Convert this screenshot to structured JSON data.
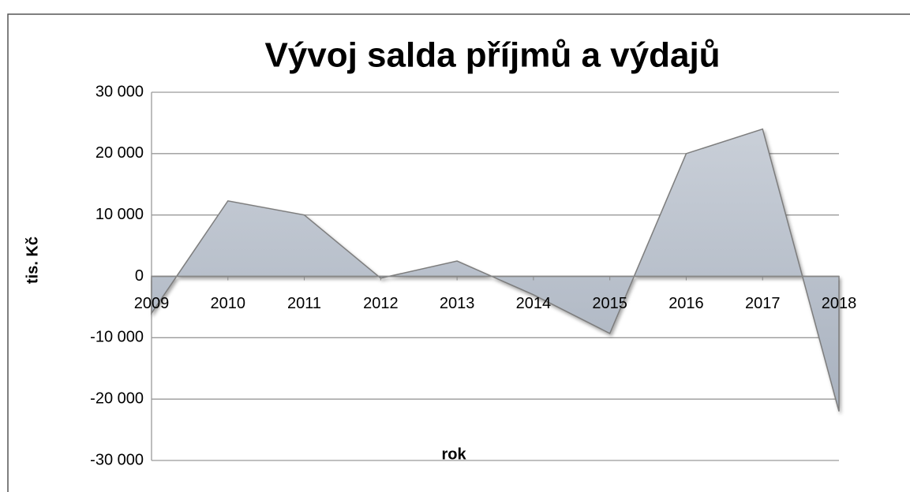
{
  "chart_data": {
    "type": "area",
    "title": "Vývoj salda příjmů a výdajů",
    "x_label": "rok",
    "y_label": "tis. Kč",
    "categories": [
      "2009",
      "2010",
      "2011",
      "2012",
      "2013",
      "2014",
      "2015",
      "2016",
      "2017",
      "2018"
    ],
    "values": [
      -6000,
      12300,
      10000,
      -300,
      2500,
      -3000,
      -9300,
      20000,
      24000,
      -22000
    ],
    "color": "#b3bbc7",
    "ylim": [
      -30000,
      30000
    ],
    "yticks": [
      {
        "value": -30000,
        "label": "-30 000"
      },
      {
        "value": -20000,
        "label": "-20 000"
      },
      {
        "value": -10000,
        "label": "-10 000"
      },
      0,
      {
        "value": 10000,
        "label": "10 000"
      },
      {
        "value": 20000,
        "label": "20 000"
      },
      {
        "value": 30000,
        "label": "30 000"
      }
    ],
    "grid": true
  }
}
